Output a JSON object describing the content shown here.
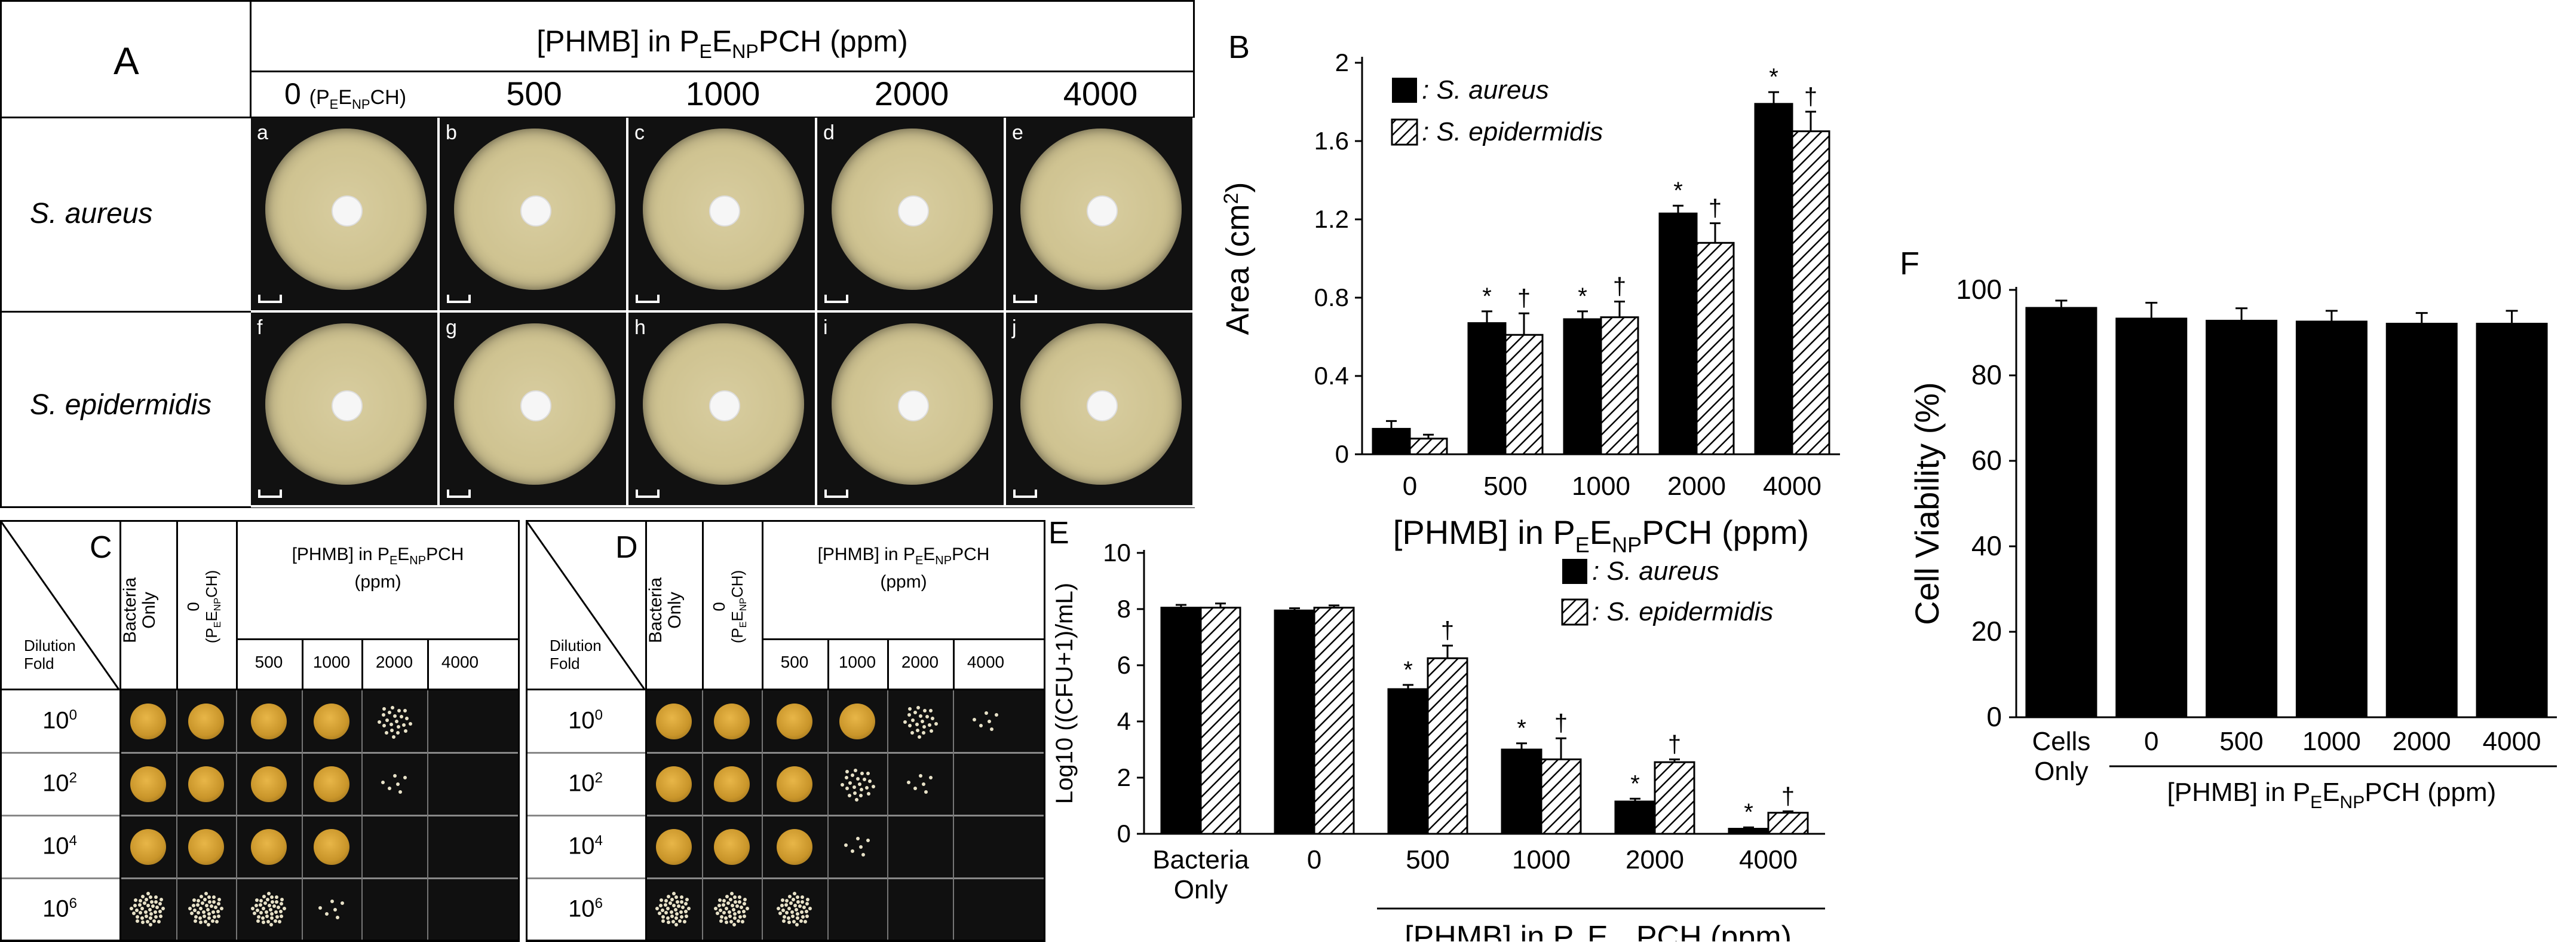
{
  "panel_a": {
    "panel_label": "A",
    "header": "[PHMB] in P",
    "header_sub1": "E",
    "header_mid": "E",
    "header_sub2": "NP",
    "header_tail": "PCH (ppm)",
    "columns": [
      "0",
      "500",
      "1000",
      "2000",
      "4000"
    ],
    "col0_suffix_pre": "(P",
    "col0_sub1": "E",
    "col0_mid": "E",
    "col0_sub2": "NP",
    "col0_tail": "CH)",
    "rows": [
      "S. aureus",
      "S. epidermidis"
    ],
    "sublabels": [
      "a",
      "b",
      "c",
      "d",
      "e",
      "f",
      "g",
      "h",
      "i",
      "j"
    ]
  },
  "panel_b": {
    "panel_label": "B",
    "ylabel": "Area (cm",
    "ylabel_sup": "2",
    "ylabel_tail": ")",
    "xlabel_pre": "[PHMB] in P",
    "xlabel_sub1": "E",
    "xlabel_mid": "E",
    "xlabel_sub2": "NP",
    "xlabel_tail": "PCH (ppm)",
    "legend": [
      ": S. aureus",
      ": S. epidermidis"
    ],
    "star": "*",
    "dagger": "†"
  },
  "panel_c": {
    "panel_label": "C",
    "corner_text": "Dilution\nFold",
    "col_bacteria": "Bacteria\nOnly",
    "col_zero": "0",
    "col_zero_sub": "(P",
    "col_zero_sub1": "E",
    "col_zero_mid": "E",
    "col_zero_sub2": "NP",
    "col_zero_tail": "CH)",
    "group_header_pre": "[PHMB] in P",
    "group_header_sub1": "E",
    "group_header_mid": "E",
    "group_header_sub2": "NP",
    "group_header_tail": "PCH",
    "group_header_line2": "(ppm)",
    "conc": [
      "500",
      "1000",
      "2000",
      "4000"
    ],
    "dilutions": [
      "0",
      "2",
      "4",
      "6"
    ],
    "dil_base": "10"
  },
  "panel_d": {
    "panel_label": "D",
    "corner_text": "Dilution\nFold",
    "col_bacteria": "Bacteria\nOnly",
    "col_zero": "0",
    "group_header_pre": "[PHMB] in P",
    "group_header_sub1": "E",
    "group_header_mid": "E",
    "group_header_sub2": "NP",
    "group_header_tail": "PCH",
    "group_header_line2": "(ppm)",
    "conc": [
      "500",
      "1000",
      "2000",
      "4000"
    ],
    "dilutions": [
      "0",
      "2",
      "4",
      "6"
    ],
    "dil_base": "10"
  },
  "panel_e": {
    "panel_label": "E",
    "ylabel": "Log10 ((CFU+1)/mL)",
    "xlabel_pre": "[PHMB] in P",
    "xlabel_sub1": "E",
    "xlabel_mid": "E",
    "xlabel_sub2": "NP",
    "xlabel_tail": "PCH (ppm)",
    "legend": [
      ": S. aureus",
      ": S. epidermidis"
    ],
    "cat0_line1": "Bacteria",
    "cat0_line2": "Only"
  },
  "panel_f": {
    "panel_label": "F",
    "ylabel": "Cell Viability (%)",
    "cat0_line1": "Cells",
    "cat0_line2": "Only",
    "xlabel_pre": "[PHMB] in P",
    "xlabel_sub1": "E",
    "xlabel_mid": "E",
    "xlabel_sub2": "NP",
    "xlabel_tail": "PCH (ppm)"
  },
  "chart_data": [
    {
      "id": "B",
      "type": "bar",
      "categories": [
        "0",
        "500",
        "1000",
        "2000",
        "4000"
      ],
      "series": [
        {
          "name": "S. aureus",
          "values": [
            0.13,
            0.67,
            0.69,
            1.23,
            1.79
          ],
          "errors": [
            0.04,
            0.06,
            0.04,
            0.04,
            0.06
          ],
          "marks": [
            "",
            "*",
            "*",
            "*",
            "*"
          ]
        },
        {
          "name": "S. epidermidis",
          "values": [
            0.08,
            0.61,
            0.7,
            1.08,
            1.65
          ],
          "errors": [
            0.02,
            0.11,
            0.08,
            0.1,
            0.1
          ],
          "marks": [
            "",
            "†",
            "†",
            "†",
            "†"
          ]
        }
      ],
      "ylim": [
        0,
        2
      ],
      "yticks": [
        "0",
        "0.4",
        "0.8",
        "1.2",
        "1.6",
        "2"
      ]
    },
    {
      "id": "E",
      "type": "bar",
      "categories": [
        "Bacteria Only",
        "0",
        "500",
        "1000",
        "2000",
        "4000"
      ],
      "series": [
        {
          "name": "S. aureus",
          "values": [
            8.05,
            7.95,
            5.15,
            3.0,
            1.15,
            0.18
          ],
          "errors": [
            0.1,
            0.08,
            0.15,
            0.22,
            0.1,
            0.05
          ],
          "marks": [
            "",
            "",
            "*",
            "*",
            "*",
            "*"
          ]
        },
        {
          "name": "S. epidermidis",
          "values": [
            8.05,
            8.05,
            6.25,
            2.65,
            2.55,
            0.75
          ],
          "errors": [
            0.15,
            0.08,
            0.45,
            0.75,
            0.1,
            0.05
          ],
          "marks": [
            "",
            "",
            "†",
            "†",
            "†",
            "†"
          ]
        }
      ],
      "ylim": [
        0,
        10
      ],
      "yticks": [
        "0",
        "2",
        "4",
        "6",
        "8",
        "10"
      ]
    },
    {
      "id": "F",
      "type": "bar",
      "categories": [
        "Cells Only",
        "0",
        "500",
        "1000",
        "2000",
        "4000"
      ],
      "series": [
        {
          "name": "",
          "values": [
            96,
            93.5,
            93,
            92.8,
            92.3,
            92.3
          ],
          "errors": [
            1.5,
            3.5,
            2.7,
            2.3,
            2.3,
            2.8
          ]
        }
      ],
      "ylim": [
        0,
        100
      ],
      "yticks": [
        "0",
        "20",
        "40",
        "60",
        "80",
        "100"
      ]
    }
  ]
}
